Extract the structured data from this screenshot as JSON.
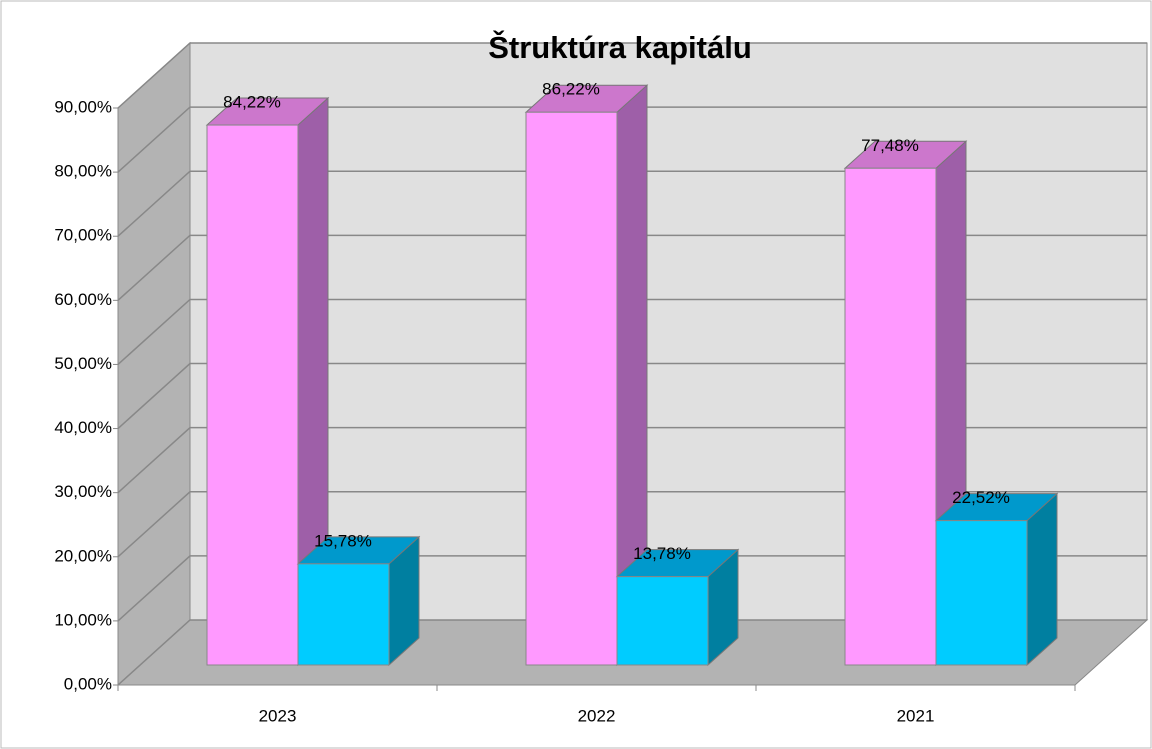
{
  "chart_data": {
    "type": "bar3d",
    "title": "Štruktúra kapitálu",
    "categories": [
      "2023",
      "2022",
      "2021"
    ],
    "series": [
      {
        "color": "#ff99ff",
        "values": [
          84.22,
          86.22,
          77.48
        ],
        "value_labels": [
          "84,22%",
          "86,22%",
          "77,48%"
        ]
      },
      {
        "color": "#00ccff",
        "values": [
          15.78,
          13.78,
          22.52
        ],
        "value_labels": [
          "15,78%",
          "13,78%",
          "22,52%"
        ]
      }
    ],
    "ylim": [
      0,
      90
    ],
    "yticks": [
      {
        "value": 0,
        "label": "0,00%"
      },
      {
        "value": 10,
        "label": "10,00%"
      },
      {
        "value": 20,
        "label": "20,00%"
      },
      {
        "value": 30,
        "label": "30,00%"
      },
      {
        "value": 40,
        "label": "40,00%"
      },
      {
        "value": 50,
        "label": "50,00%"
      },
      {
        "value": 60,
        "label": "60,00%"
      },
      {
        "value": 70,
        "label": "70,00%"
      },
      {
        "value": 80,
        "label": "80,00%"
      },
      {
        "value": 90,
        "label": "90,00%"
      }
    ],
    "grid": true
  }
}
